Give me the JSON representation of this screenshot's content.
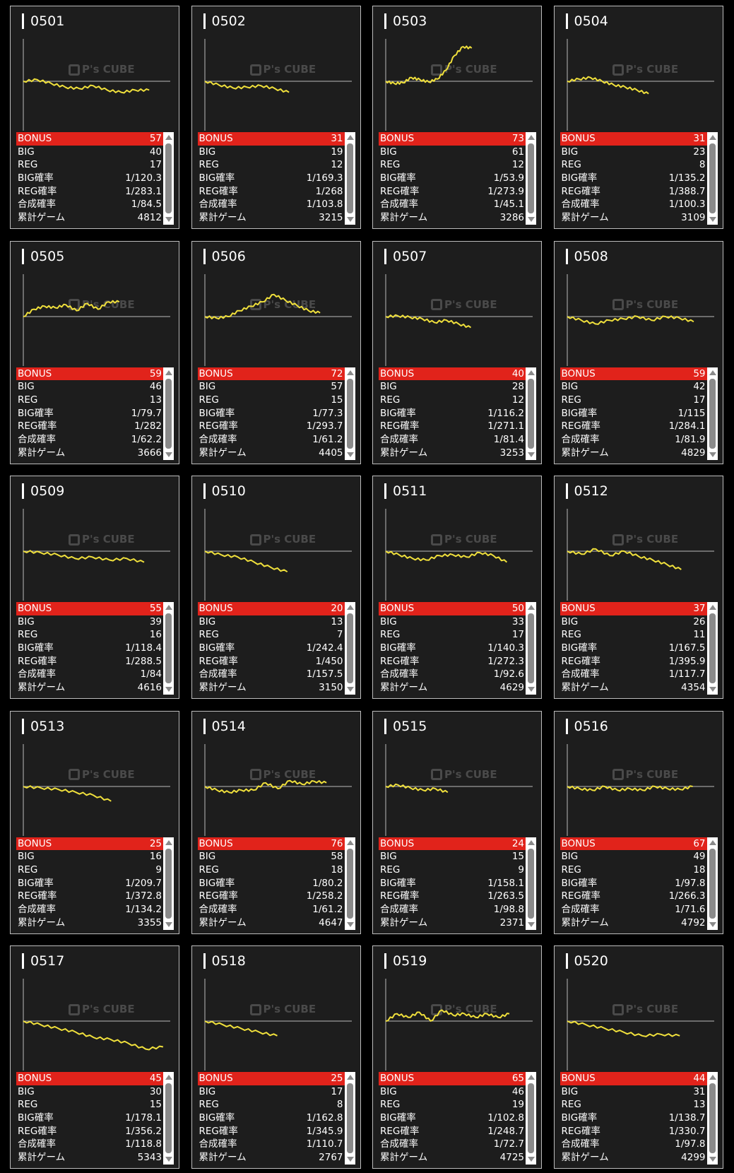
{
  "labels": {
    "bonus": "BONUS",
    "big": "BIG",
    "reg": "REG",
    "big_rate": "BIG確率",
    "reg_rate": "REG確率",
    "total_rate": "合成確率",
    "games": "累計ゲーム"
  },
  "watermark": "P's CUBE",
  "colors": {
    "bonus_bar": "#e1231b",
    "graph_line": "#f0e03c",
    "card_bg": "#1d1d1d"
  },
  "machines": [
    {
      "id": "0501",
      "bonus": "57",
      "big": "40",
      "reg": "17",
      "big_rate": "1/120.3",
      "reg_rate": "1/283.1",
      "total_rate": "1/84.5",
      "games": "4812",
      "graph": [
        0,
        100,
        -150,
        -400,
        -500,
        -300,
        -600,
        -750,
        -600,
        -600
      ]
    },
    {
      "id": "0502",
      "bonus": "31",
      "big": "19",
      "reg": "12",
      "big_rate": "1/169.3",
      "reg_rate": "1/268",
      "total_rate": "1/103.8",
      "games": "3215",
      "graph": [
        0,
        -250,
        -450,
        -400,
        -300,
        -500,
        -750
      ]
    },
    {
      "id": "0503",
      "bonus": "73",
      "big": "61",
      "reg": "12",
      "big_rate": "1/53.9",
      "reg_rate": "1/273.9",
      "total_rate": "1/45.1",
      "games": "3286",
      "graph": [
        0,
        -150,
        -100,
        250,
        100,
        -50,
        150,
        750,
        1750,
        2350,
        2250
      ]
    },
    {
      "id": "0504",
      "bonus": "31",
      "big": "23",
      "reg": "8",
      "big_rate": "1/135.2",
      "reg_rate": "1/388.7",
      "total_rate": "1/100.3",
      "games": "3109",
      "graph": [
        0,
        150,
        250,
        0,
        -250,
        -400,
        -600,
        -850
      ]
    },
    {
      "id": "0505",
      "bonus": "59",
      "big": "46",
      "reg": "13",
      "big_rate": "1/79.7",
      "reg_rate": "1/282",
      "total_rate": "1/62.2",
      "games": "3666",
      "graph": [
        0,
        500,
        700,
        600,
        800,
        400,
        900,
        500,
        1000,
        1000
      ]
    },
    {
      "id": "0506",
      "bonus": "72",
      "big": "57",
      "reg": "15",
      "big_rate": "1/77.3",
      "reg_rate": "1/293.7",
      "total_rate": "1/61.2",
      "games": "4405",
      "graph": [
        0,
        -100,
        0,
        400,
        700,
        1000,
        1500,
        1100,
        750,
        400,
        250
      ]
    },
    {
      "id": "0507",
      "bonus": "40",
      "big": "28",
      "reg": "12",
      "big_rate": "1/116.2",
      "reg_rate": "1/271.1",
      "total_rate": "1/81.4",
      "games": "3253",
      "graph": [
        0,
        50,
        -50,
        -150,
        -400,
        -250,
        -500,
        -750
      ]
    },
    {
      "id": "0508",
      "bonus": "59",
      "big": "42",
      "reg": "17",
      "big_rate": "1/115",
      "reg_rate": "1/284.1",
      "total_rate": "1/81.9",
      "games": "4829",
      "graph": [
        0,
        -250,
        -500,
        -250,
        -150,
        0,
        -250,
        0,
        -100,
        -350
      ]
    },
    {
      "id": "0509",
      "bonus": "55",
      "big": "39",
      "reg": "16",
      "big_rate": "1/118.4",
      "reg_rate": "1/288.5",
      "total_rate": "1/84",
      "games": "4616",
      "graph": [
        0,
        -100,
        -250,
        -500,
        -400,
        -600,
        -500,
        -750
      ]
    },
    {
      "id": "0510",
      "bonus": "20",
      "big": "13",
      "reg": "7",
      "big_rate": "1/242.4",
      "reg_rate": "1/450",
      "total_rate": "1/157.5",
      "games": "3150",
      "graph": [
        0,
        -250,
        -400,
        -750,
        -1100,
        -1400
      ]
    },
    {
      "id": "0511",
      "bonus": "50",
      "big": "33",
      "reg": "17",
      "big_rate": "1/140.3",
      "reg_rate": "1/272.3",
      "total_rate": "1/92.6",
      "games": "4629",
      "graph": [
        0,
        -250,
        -500,
        -600,
        -300,
        -250,
        -400,
        -100,
        -300,
        -750
      ]
    },
    {
      "id": "0512",
      "bonus": "37",
      "big": "26",
      "reg": "11",
      "big_rate": "1/167.5",
      "reg_rate": "1/395.9",
      "total_rate": "1/117.7",
      "games": "4354",
      "graph": [
        0,
        -200,
        150,
        -300,
        0,
        -350,
        -600,
        -900,
        -1250
      ]
    },
    {
      "id": "0513",
      "bonus": "25",
      "big": "16",
      "reg": "9",
      "big_rate": "1/209.7",
      "reg_rate": "1/372.8",
      "total_rate": "1/134.2",
      "games": "3355",
      "graph": [
        0,
        -100,
        -200,
        -400,
        -600,
        -1000
      ]
    },
    {
      "id": "0514",
      "bonus": "76",
      "big": "58",
      "reg": "18",
      "big_rate": "1/80.2",
      "reg_rate": "1/258.2",
      "total_rate": "1/61.2",
      "games": "4647",
      "graph": [
        0,
        -250,
        -400,
        -250,
        -250,
        250,
        -150,
        400,
        150,
        350,
        250
      ]
    },
    {
      "id": "0515",
      "bonus": "24",
      "big": "15",
      "reg": "9",
      "big_rate": "1/158.1",
      "reg_rate": "1/263.5",
      "total_rate": "1/98.8",
      "games": "2371",
      "graph": [
        0,
        100,
        -100,
        -250,
        -150,
        -400
      ]
    },
    {
      "id": "0516",
      "bonus": "67",
      "big": "49",
      "reg": "18",
      "big_rate": "1/97.8",
      "reg_rate": "1/266.3",
      "total_rate": "1/71.6",
      "games": "4792",
      "graph": [
        0,
        -150,
        -250,
        0,
        -250,
        -150,
        -250,
        0,
        -150,
        -200,
        0
      ]
    },
    {
      "id": "0517",
      "bonus": "45",
      "big": "30",
      "reg": "15",
      "big_rate": "1/178.1",
      "reg_rate": "1/356.2",
      "total_rate": "1/118.8",
      "games": "5343",
      "graph": [
        0,
        -250,
        -500,
        -750,
        -1100,
        -1250,
        -1500,
        -1900,
        -1750
      ]
    },
    {
      "id": "0518",
      "bonus": "25",
      "big": "17",
      "reg": "8",
      "big_rate": "1/162.8",
      "reg_rate": "1/345.9",
      "total_rate": "1/110.7",
      "games": "2767",
      "graph": [
        0,
        -250,
        -500,
        -750,
        -1000
      ]
    },
    {
      "id": "0519",
      "bonus": "65",
      "big": "46",
      "reg": "19",
      "big_rate": "1/102.8",
      "reg_rate": "1/248.7",
      "total_rate": "1/72.7",
      "games": "4725",
      "graph": [
        0,
        500,
        250,
        600,
        0,
        750,
        400,
        500,
        250,
        500,
        250,
        500
      ]
    },
    {
      "id": "0520",
      "bonus": "44",
      "big": "31",
      "reg": "13",
      "big_rate": "1/138.7",
      "reg_rate": "1/330.7",
      "total_rate": "1/97.8",
      "games": "4299",
      "graph": [
        0,
        -250,
        -500,
        -750,
        -1000,
        -900,
        -1000
      ]
    }
  ]
}
